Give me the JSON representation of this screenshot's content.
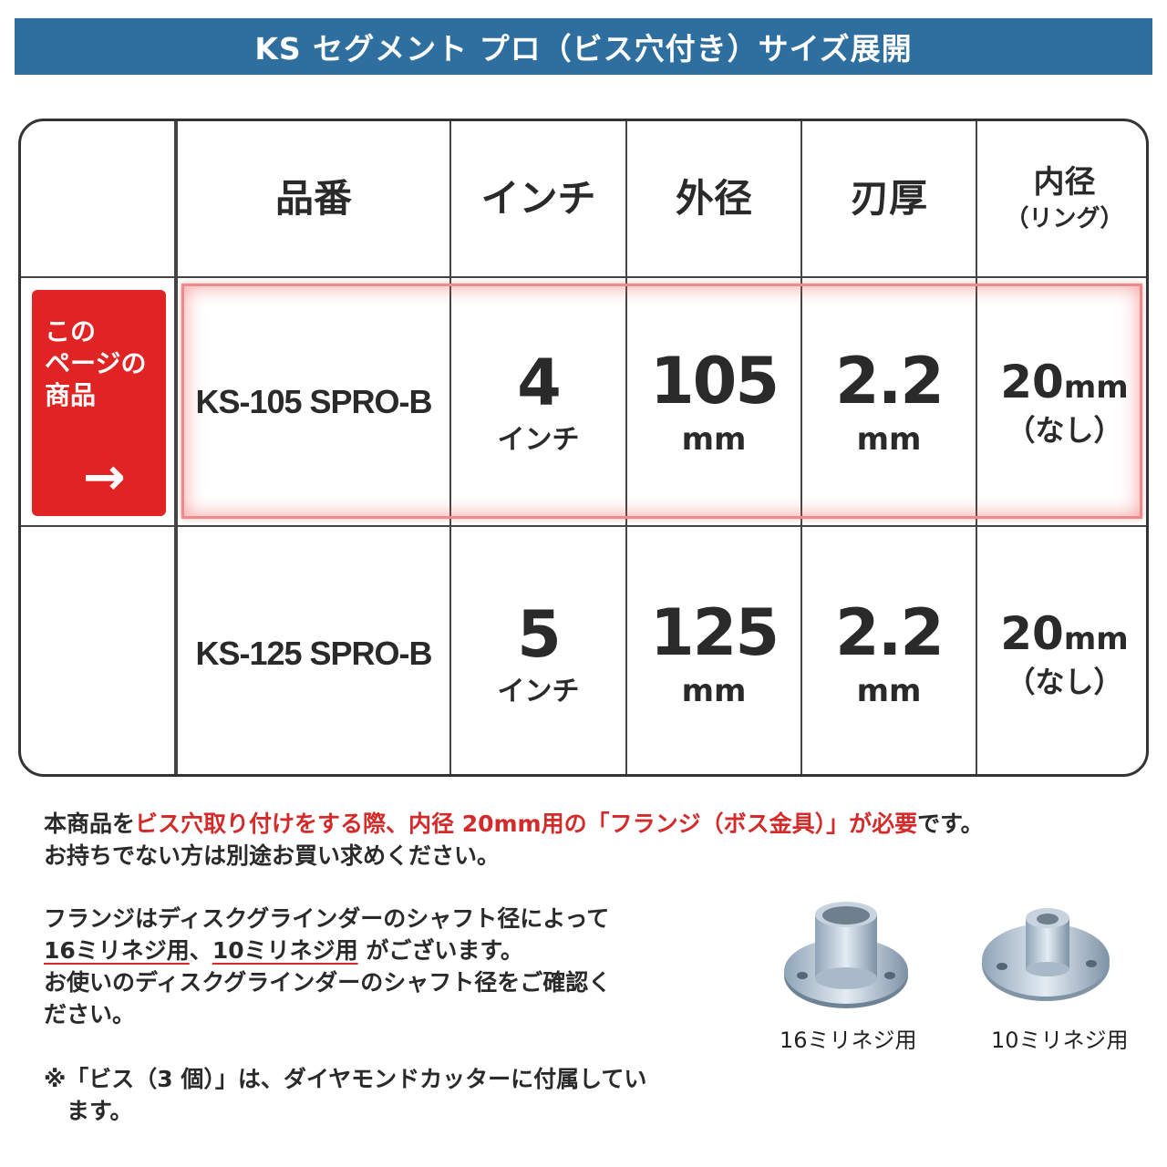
{
  "title": "KS セグメント プロ（ビス穴付き）サイズ展開",
  "table": {
    "headers": {
      "code": "品番",
      "inch": "インチ",
      "outer": "外径",
      "thickness": "刃厚",
      "inner": "内径",
      "inner_sub": "（リング）"
    },
    "current_label": "この\nページの\n商品",
    "current_arrow": "→",
    "rows": [
      {
        "code": "KS-105 SPRO-B",
        "inch": "4",
        "inch_unit": "インチ",
        "outer": "105",
        "outer_unit": "mm",
        "thickness": "2.2",
        "thickness_unit": "mm",
        "inner": "20",
        "inner_unit": "mm",
        "inner_note": "（なし）"
      },
      {
        "code": "KS-125 SPRO-B",
        "inch": "5",
        "inch_unit": "インチ",
        "outer": "125",
        "outer_unit": "mm",
        "thickness": "2.2",
        "thickness_unit": "mm",
        "inner": "20",
        "inner_unit": "mm",
        "inner_note": "（なし）"
      }
    ]
  },
  "notes": {
    "p1_a": "本商品を",
    "p1_red": "ビス穴取り付けをする際、内径 20mm用の「フランジ（ボス金具）」が必要",
    "p1_b": "です。",
    "p1_line2": "お持ちでない方は別途お買い求めください。",
    "p2_line1": "フランジはディスクグラインダーのシャフト径によって",
    "p2_ul1": "16ミリネジ用",
    "p2_sep": "、",
    "p2_ul2": "10ミリネジ用",
    "p2_rest": " がございます。",
    "p2_line3": "お使いのディスクグラインダーのシャフト径をご確認く",
    "p2_line4": "ださい。",
    "p3_line1": "※「ビス（3 個）」は、ダイヤモンドカッターに付属してい",
    "p3_line2": "　ます。"
  },
  "flanges": [
    {
      "caption": "16ミリネジ用"
    },
    {
      "caption": "10ミリネジ用"
    }
  ],
  "colors": {
    "banner": "#2f6fa0",
    "accent_red": "#e02424"
  }
}
